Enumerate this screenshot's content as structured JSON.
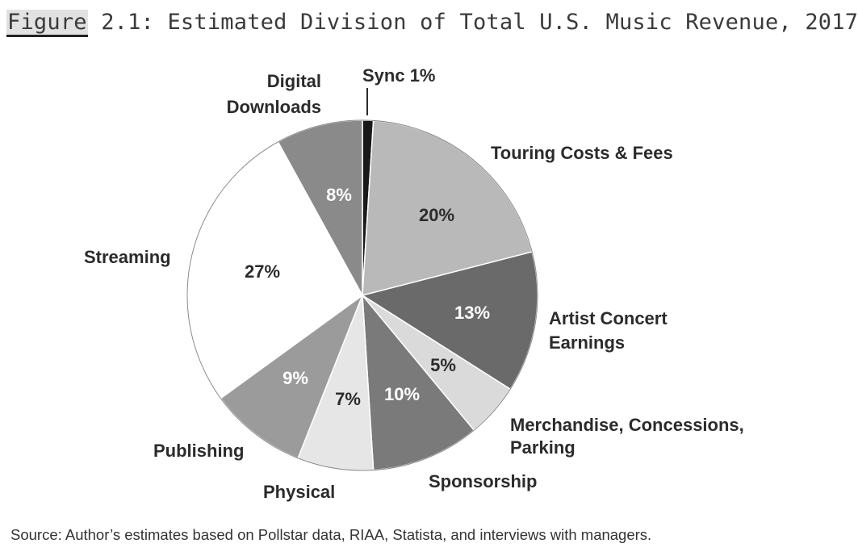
{
  "title": {
    "prefix": "Figure",
    "text": " 2.1: Estimated Division of Total U.S. Music Revenue, 2017"
  },
  "source": "Source: Author’s estimates based on Pollstar data, RIAA, Statista, and interviews with managers.",
  "chart_data": {
    "type": "pie",
    "title": "Figure 2.1: Estimated Division of Total U.S. Music Revenue, 2017",
    "start_angle_deg": 0,
    "direction": "clockwise",
    "unit": "%",
    "slices": [
      {
        "label_lines": [
          "Sync 1%"
        ],
        "value": 1,
        "value_label": "",
        "color": "#1a1a1a",
        "text_color": "#ffffff"
      },
      {
        "label_lines": [
          "Touring Costs & Fees"
        ],
        "value": 20,
        "value_label": "20%",
        "color": "#b9b9b9",
        "text_color": "#2b2b2b"
      },
      {
        "label_lines": [
          "Artist Concert",
          "Earnings"
        ],
        "value": 13,
        "value_label": "13%",
        "color": "#6a6a6a",
        "text_color": "#ffffff"
      },
      {
        "label_lines": [
          "Merchandise, Concessions,",
          "Parking"
        ],
        "value": 5,
        "value_label": "5%",
        "color": "#dadada",
        "text_color": "#2b2b2b"
      },
      {
        "label_lines": [
          "Sponsorship"
        ],
        "value": 10,
        "value_label": "10%",
        "color": "#7a7a7a",
        "text_color": "#ffffff"
      },
      {
        "label_lines": [
          "Physical"
        ],
        "value": 7,
        "value_label": "7%",
        "color": "#e6e6e6",
        "text_color": "#2b2b2b"
      },
      {
        "label_lines": [
          "Publishing"
        ],
        "value": 9,
        "value_label": "9%",
        "color": "#9b9b9b",
        "text_color": "#ffffff"
      },
      {
        "label_lines": [
          "Streaming"
        ],
        "value": 27,
        "value_label": "27%",
        "color": "#ffffff",
        "text_color": "#2b2b2b"
      },
      {
        "label_lines": [
          "Digital",
          "Downloads"
        ],
        "value": 8,
        "value_label": "8%",
        "color": "#8a8a8a",
        "text_color": "#ffffff"
      }
    ]
  }
}
